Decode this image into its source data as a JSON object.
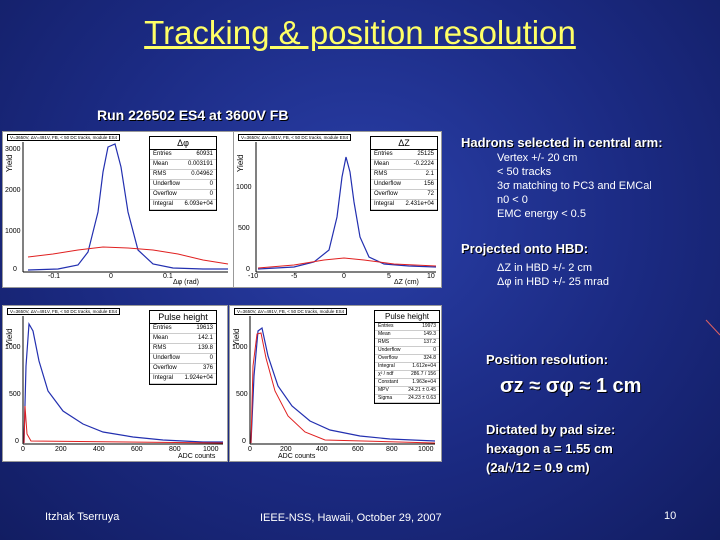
{
  "title": "Tracking & position resolution",
  "subtitle": "Run 226502 ES4 at 3600V FB",
  "right_panel": {
    "h1": "Hadrons selected in central arm:",
    "cuts": [
      "Vertex +/- 20 cm",
      "< 50 tracks",
      "3σ matching to PC3 and EMCal",
      "n0 < 0",
      "EMC energy < 0.5"
    ],
    "h2": "Projected onto HBD:",
    "proj": [
      "ΔZ in HBD +/- 2 cm",
      "Δφ in HBD +/- 25 mrad"
    ],
    "h3": "Position resolution:",
    "formula": "σz ≈ σφ ≈ 1 cm",
    "h4_lines": [
      "Dictated by pad size:",
      "hexagon a = 1.55 cm",
      "(2a/√12 = 0.9 cm)"
    ]
  },
  "footer": {
    "author": "Itzhak Tserruya",
    "conf": "IEEE-NSS, Hawaii, October 29, 2007",
    "page": "10"
  },
  "plots": [
    {
      "header": "V=3650V, ΔV=491V, FB, < 50 DC tracks, module ES4",
      "stat_title": "Δφ",
      "ylabel": "Yield",
      "xlabel": "Δφ (rad)",
      "yticks": [
        "0",
        "1000",
        "2000",
        "3000"
      ],
      "xticks": [
        "-0.1",
        "0",
        "0.1"
      ],
      "stats": [
        [
          "Entries",
          "60931"
        ],
        [
          "Mean",
          "0.003191"
        ],
        [
          "RMS",
          "0.04962"
        ],
        [
          "Underflow",
          "0"
        ],
        [
          "Overflow",
          "0"
        ],
        [
          "Integral",
          "6.093e+04"
        ]
      ]
    },
    {
      "header": "V=3650V, ΔV=491V, FB, < 50 DC tracks, module ES4",
      "stat_title": "ΔZ",
      "ylabel": "Yield",
      "xlabel": "ΔZ (cm)",
      "yticks": [
        "0",
        "500",
        "1000"
      ],
      "xticks": [
        "-10",
        "-5",
        "0",
        "5",
        "10"
      ],
      "stats": [
        [
          "Entries",
          "25125"
        ],
        [
          "Mean",
          "-0.2224"
        ],
        [
          "RMS",
          "2.1"
        ],
        [
          "Underflow",
          "156"
        ],
        [
          "Overflow",
          "72"
        ],
        [
          "Integral",
          "2.431e+04"
        ]
      ]
    },
    {
      "header": "V=3650V, ΔV=491V, FB, < 50 DC tracks, module ES4",
      "stat_title": "Pulse height",
      "ylabel": "Yield",
      "xlabel": "ADC counts",
      "yticks": [
        "0",
        "500",
        "1000"
      ],
      "xticks": [
        "0",
        "200",
        "400",
        "600",
        "800",
        "1000"
      ],
      "stats": [
        [
          "Entries",
          "19613"
        ],
        [
          "Mean",
          "142.1"
        ],
        [
          "RMS",
          "139.8"
        ],
        [
          "Underflow",
          "0"
        ],
        [
          "Overflow",
          "376"
        ],
        [
          "Integral",
          "1.924e+04"
        ]
      ]
    },
    {
      "header": "V=3650V, ΔV=491V, FB, < 50 DC tracks, module ES4",
      "stat_title": "Pulse height",
      "ylabel": "Yield",
      "xlabel": "ADC counts",
      "yticks": [
        "0",
        "500",
        "1000"
      ],
      "xticks": [
        "0",
        "200",
        "400",
        "600",
        "800",
        "1000"
      ],
      "stats": [
        [
          "Entries",
          "19973"
        ],
        [
          "Mean",
          "149.3"
        ],
        [
          "RMS",
          "137.2"
        ],
        [
          "Underflow",
          "0"
        ],
        [
          "Overflow",
          "324.8"
        ],
        [
          "Integral",
          "1.612e+04"
        ],
        [
          "χ² / ndf",
          "286.7 / 156"
        ],
        [
          "Constant",
          "1.963e+04"
        ],
        [
          "MPV",
          "24.21 ± 0.45"
        ],
        [
          "Sigma",
          "24.23 ± 0.63"
        ]
      ]
    }
  ]
}
